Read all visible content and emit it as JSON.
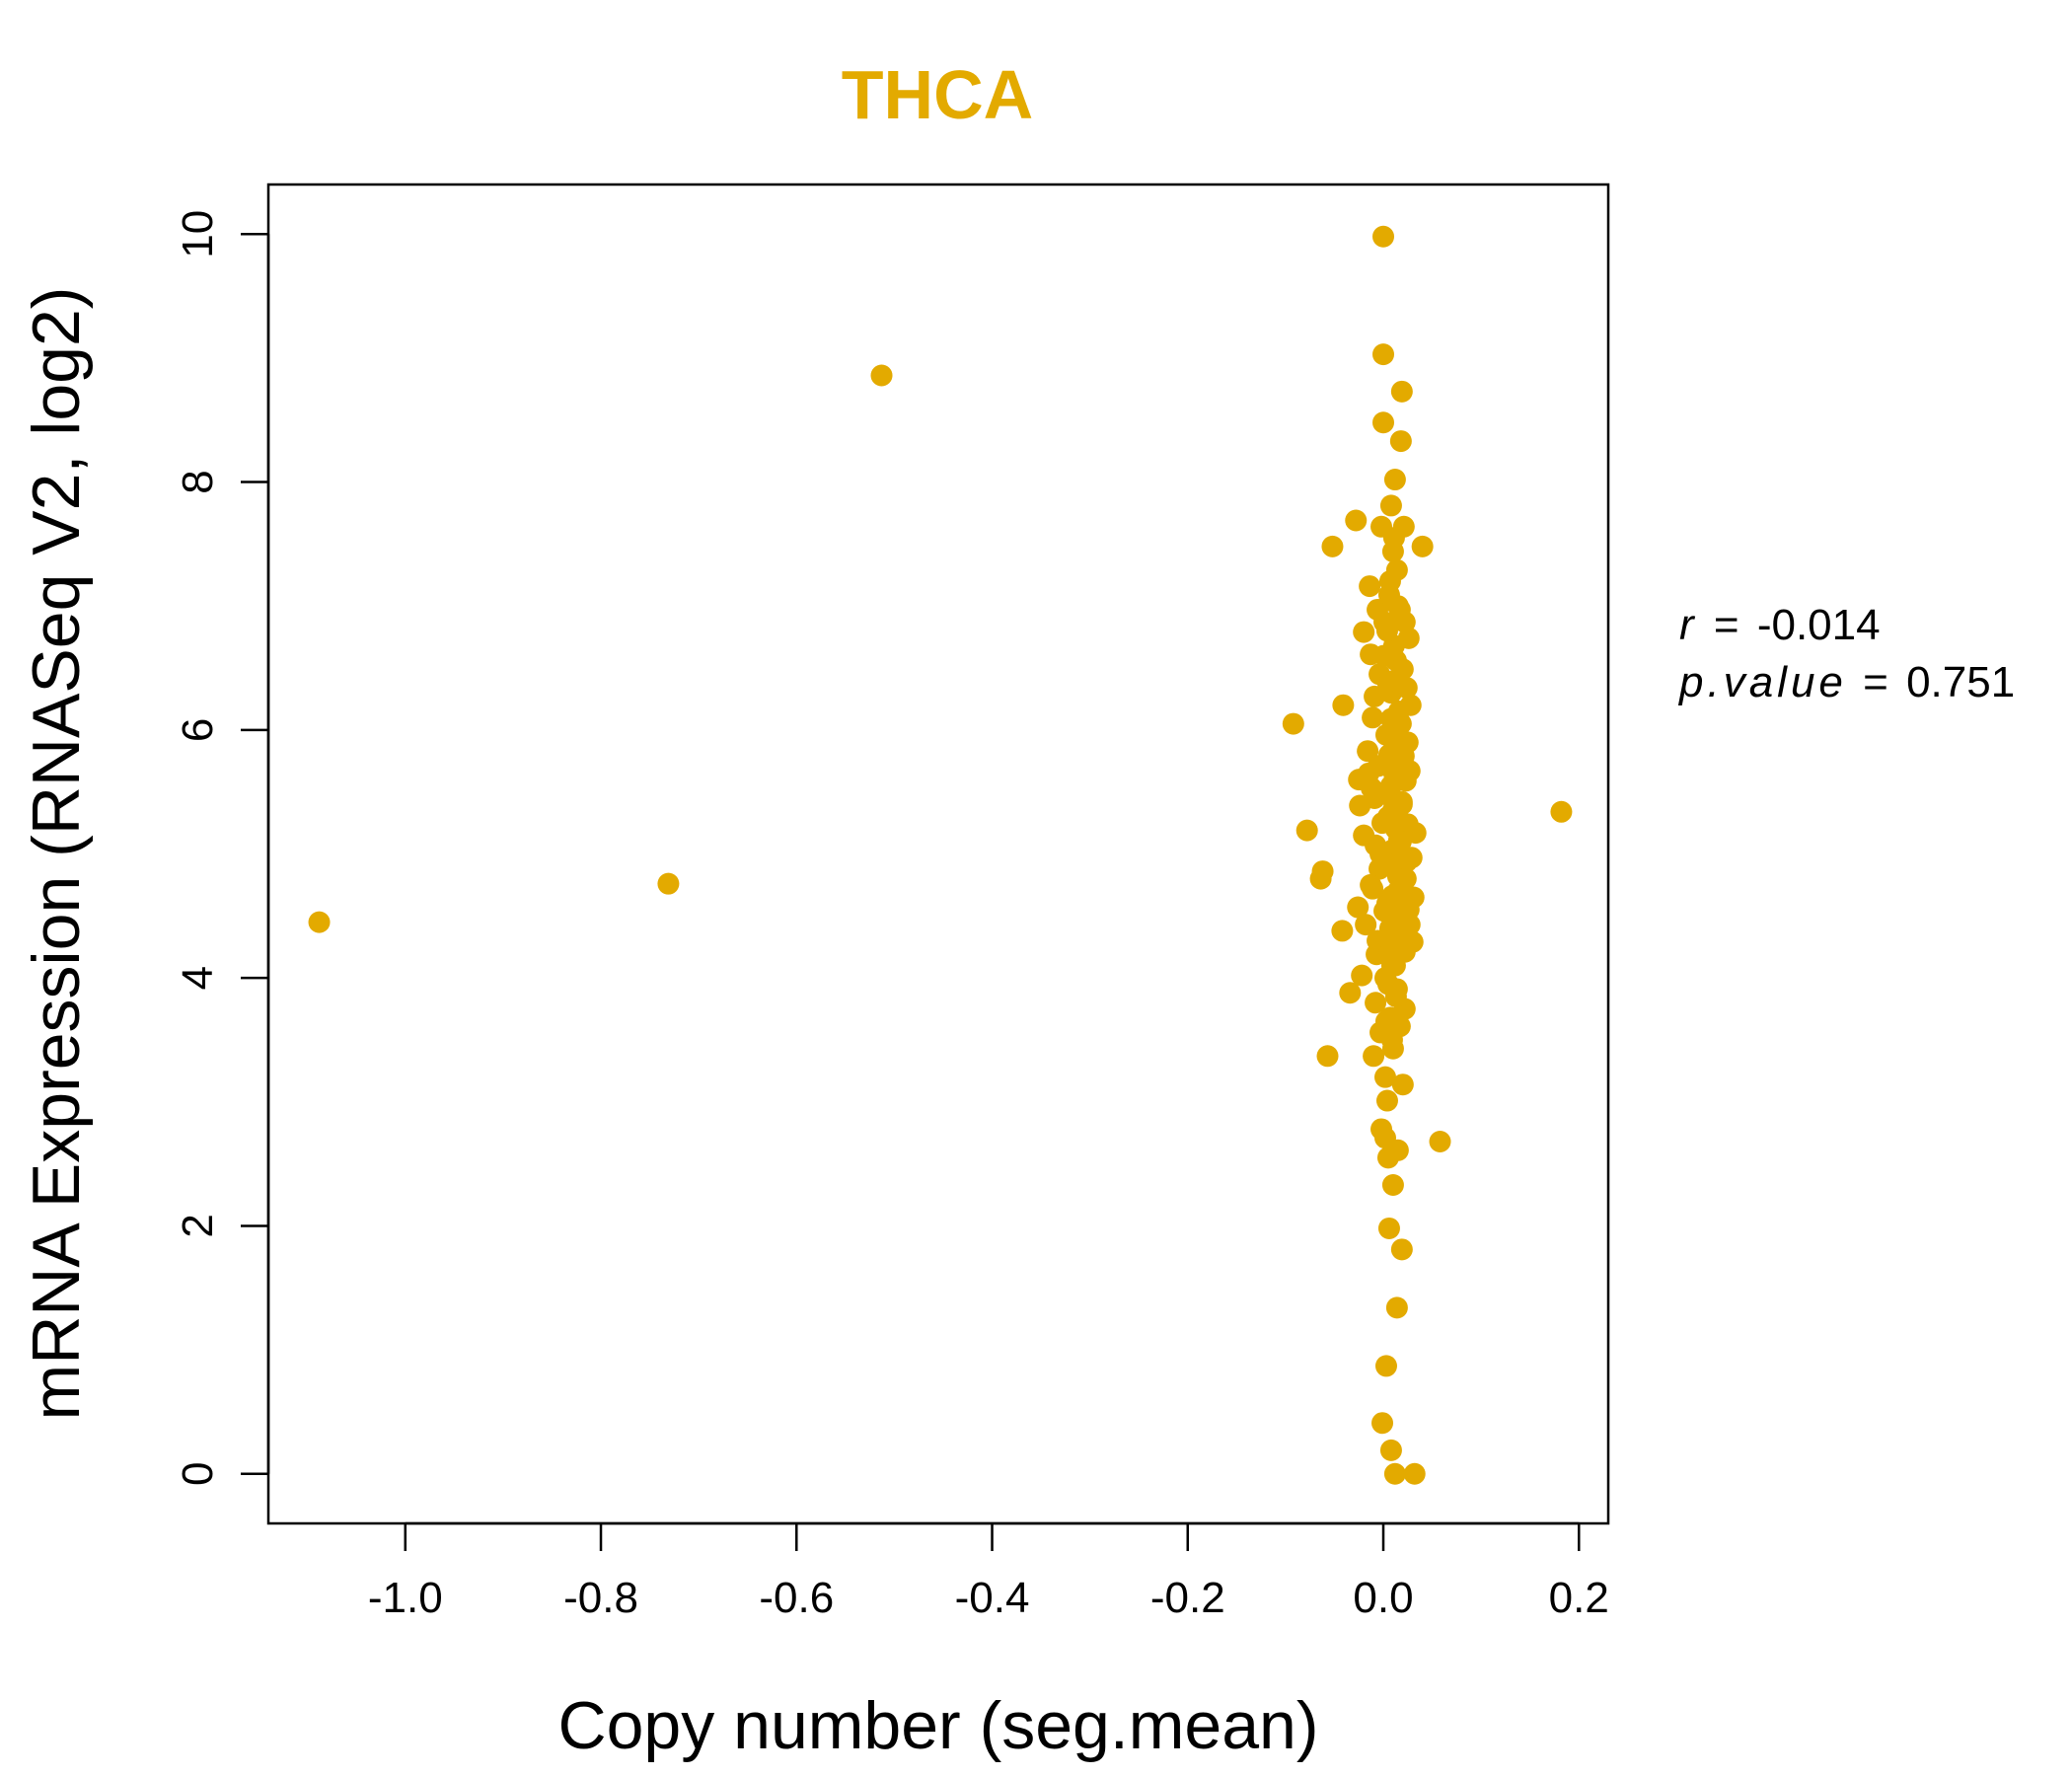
{
  "chart_data": {
    "type": "scatter",
    "title": "THCA",
    "xlabel": "Copy number (seg.mean)",
    "ylabel": "mRNA Expression (RNASeq V2, log2)",
    "xlim": [
      -1.14,
      0.23
    ],
    "ylim": [
      -0.4,
      10.4
    ],
    "xticks": [
      -1.0,
      -0.8,
      -0.6,
      -0.4,
      -0.2,
      0.0,
      0.2
    ],
    "xtick_labels": [
      "-1.0",
      "-0.8",
      "-0.6",
      "-0.4",
      "-0.2",
      "0.0",
      "0.2"
    ],
    "yticks": [
      0,
      2,
      4,
      6,
      8,
      10
    ],
    "ytick_labels": [
      "0",
      "2",
      "4",
      "6",
      "8",
      "10"
    ],
    "point_color": "#E3AA00",
    "stats": {
      "r_label": "r",
      "r_value": "-0.014",
      "p_label": "p.value",
      "p_value": "0.751",
      "equals": "="
    },
    "points": [
      [
        -1.088,
        4.45
      ],
      [
        -0.731,
        4.76
      ],
      [
        -0.513,
        8.86
      ],
      [
        0.182,
        5.34
      ],
      [
        -0.092,
        6.05
      ],
      [
        -0.078,
        5.19
      ],
      [
        -0.062,
        4.86
      ],
      [
        -0.064,
        4.8
      ],
      [
        -0.057,
        3.37
      ],
      [
        -0.052,
        7.48
      ],
      [
        -0.042,
        4.38
      ],
      [
        -0.041,
        6.2
      ],
      [
        -0.034,
        3.88
      ],
      [
        -0.028,
        7.69
      ],
      [
        -0.026,
        4.57
      ],
      [
        -0.025,
        5.6
      ],
      [
        -0.024,
        5.39
      ],
      [
        -0.022,
        4.02
      ],
      [
        -0.02,
        6.79
      ],
      [
        -0.02,
        5.15
      ],
      [
        -0.018,
        4.43
      ],
      [
        -0.016,
        5.83
      ],
      [
        -0.014,
        7.16
      ],
      [
        -0.013,
        6.61
      ],
      [
        -0.012,
        5.53
      ],
      [
        -0.011,
        4.72
      ],
      [
        -0.01,
        3.37
      ],
      [
        -0.009,
        6.27
      ],
      [
        -0.008,
        5.07
      ],
      [
        -0.008,
        3.8
      ],
      [
        -0.007,
        4.19
      ],
      [
        -0.006,
        6.97
      ],
      [
        -0.005,
        5.71
      ],
      [
        -0.004,
        6.45
      ],
      [
        -0.004,
        4.88
      ],
      [
        -0.003,
        3.56
      ],
      [
        -0.002,
        2.78
      ],
      [
        -0.002,
        7.64
      ],
      [
        -0.001,
        5.25
      ],
      [
        -0.001,
        0.41
      ],
      [
        0.0,
        9.98
      ],
      [
        0.0,
        9.03
      ],
      [
        0.0,
        8.48
      ],
      [
        0.001,
        6.87
      ],
      [
        0.001,
        4.54
      ],
      [
        0.002,
        3.2
      ],
      [
        0.002,
        2.71
      ],
      [
        0.003,
        0.87
      ],
      [
        0.003,
        5.96
      ],
      [
        0.004,
        4.98
      ],
      [
        0.004,
        3.01
      ],
      [
        0.005,
        6.37
      ],
      [
        0.005,
        2.55
      ],
      [
        0.006,
        1.98
      ],
      [
        0.006,
        7.09
      ],
      [
        0.006,
        5.47
      ],
      [
        0.007,
        4.27
      ],
      [
        0.007,
        3.68
      ],
      [
        0.008,
        7.81
      ],
      [
        0.008,
        6.09
      ],
      [
        0.008,
        0.19
      ],
      [
        0.009,
        5.03
      ],
      [
        0.009,
        4.66
      ],
      [
        0.01,
        2.33
      ],
      [
        0.01,
        7.44
      ],
      [
        0.01,
        3.43
      ],
      [
        0.011,
        6.68
      ],
      [
        0.011,
        5.65
      ],
      [
        0.012,
        8.02
      ],
      [
        0.012,
        4.1
      ],
      [
        0.012,
        0.0
      ],
      [
        0.013,
        6.56
      ],
      [
        0.013,
        5.86
      ],
      [
        0.014,
        1.34
      ],
      [
        0.014,
        3.91
      ],
      [
        0.014,
        7.29
      ],
      [
        0.015,
        4.82
      ],
      [
        0.015,
        2.61
      ],
      [
        0.016,
        6.15
      ],
      [
        0.016,
        5.11
      ],
      [
        0.017,
        3.61
      ],
      [
        0.017,
        6.97
      ],
      [
        0.018,
        4.48
      ],
      [
        0.018,
        8.33
      ],
      [
        0.019,
        8.73
      ],
      [
        0.019,
        5.42
      ],
      [
        0.019,
        1.81
      ],
      [
        0.02,
        6.49
      ],
      [
        0.02,
        4.62
      ],
      [
        0.02,
        3.14
      ],
      [
        0.021,
        7.64
      ],
      [
        0.021,
        5.79
      ],
      [
        0.022,
        6.87
      ],
      [
        0.022,
        4.21
      ],
      [
        0.022,
        3.75
      ],
      [
        0.023,
        5.59
      ],
      [
        0.024,
        6.34
      ],
      [
        0.024,
        4.94
      ],
      [
        0.025,
        5.24
      ],
      [
        0.026,
        6.74
      ],
      [
        0.027,
        4.43
      ],
      [
        0.027,
        5.67
      ],
      [
        0.028,
        6.2
      ],
      [
        0.029,
        4.97
      ],
      [
        0.03,
        4.29
      ],
      [
        0.031,
        4.65
      ],
      [
        0.032,
        0.0
      ],
      [
        0.033,
        5.17
      ],
      [
        0.04,
        7.48
      ],
      [
        0.058,
        2.68
      ],
      [
        0.003,
        5.5
      ],
      [
        0.005,
        5.3
      ],
      [
        0.007,
        4.4
      ],
      [
        0.009,
        4.1
      ],
      [
        0.011,
        5.9
      ],
      [
        0.013,
        5.2
      ],
      [
        0.015,
        4.7
      ],
      [
        0.017,
        5.0
      ],
      [
        0.019,
        5.4
      ],
      [
        0.021,
        4.3
      ],
      [
        0.004,
        4.6
      ],
      [
        0.006,
        5.8
      ],
      [
        0.008,
        6.3
      ],
      [
        0.01,
        4.9
      ],
      [
        0.012,
        5.6
      ],
      [
        0.014,
        6.0
      ],
      [
        0.016,
        4.5
      ],
      [
        0.018,
        5.1
      ],
      [
        0.02,
        5.7
      ],
      [
        0.002,
        4.0
      ],
      [
        0.001,
        6.6
      ],
      [
        0.023,
        4.8
      ],
      [
        0.025,
        5.9
      ],
      [
        0.026,
        4.55
      ],
      [
        -0.003,
        5.0
      ],
      [
        -0.006,
        4.3
      ],
      [
        -0.009,
        5.45
      ],
      [
        -0.011,
        6.1
      ],
      [
        -0.013,
        4.75
      ],
      [
        -0.015,
        5.65
      ],
      [
        0.005,
        3.95
      ],
      [
        0.009,
        3.5
      ],
      [
        0.013,
        3.85
      ],
      [
        0.003,
        3.65
      ],
      [
        0.011,
        7.55
      ],
      [
        0.007,
        7.2
      ],
      [
        0.015,
        7.0
      ],
      [
        0.004,
        6.8
      ],
      [
        0.012,
        6.4
      ],
      [
        0.018,
        6.05
      ],
      [
        0.006,
        4.2
      ],
      [
        0.014,
        4.35
      ],
      [
        0.01,
        5.35
      ],
      [
        0.008,
        5.55
      ]
    ]
  }
}
